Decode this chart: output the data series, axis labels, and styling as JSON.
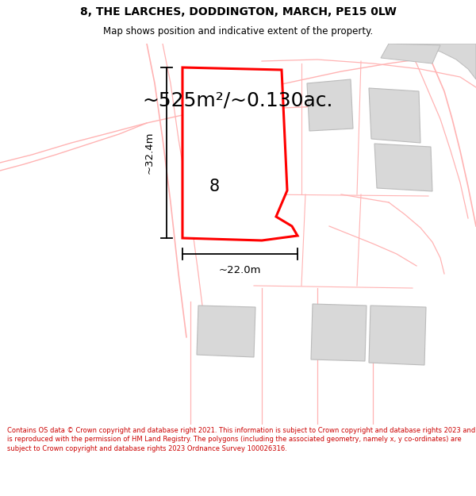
{
  "title": "8, THE LARCHES, DODDINGTON, MARCH, PE15 0LW",
  "subtitle": "Map shows position and indicative extent of the property.",
  "area_text": "~525m²/~0.130ac.",
  "label_8": "8",
  "dim_width": "~22.0m",
  "dim_height": "~32.4m",
  "footer": "Contains OS data © Crown copyright and database right 2021. This information is subject to Crown copyright and database rights 2023 and is reproduced with the permission of HM Land Registry. The polygons (including the associated geometry, namely x, y co-ordinates) are subject to Crown copyright and database rights 2023 Ordnance Survey 100026316.",
  "bg_color": "#ffffff",
  "plot_color": "#ff0000",
  "plot_fill": "#ffffff",
  "road_color": "#ffb3b3",
  "gray_fill": "#d8d8d8",
  "gray_stroke": "#bbbbbb",
  "dim_color": "#000000",
  "title_color": "#000000",
  "footer_color": "#cc0000"
}
